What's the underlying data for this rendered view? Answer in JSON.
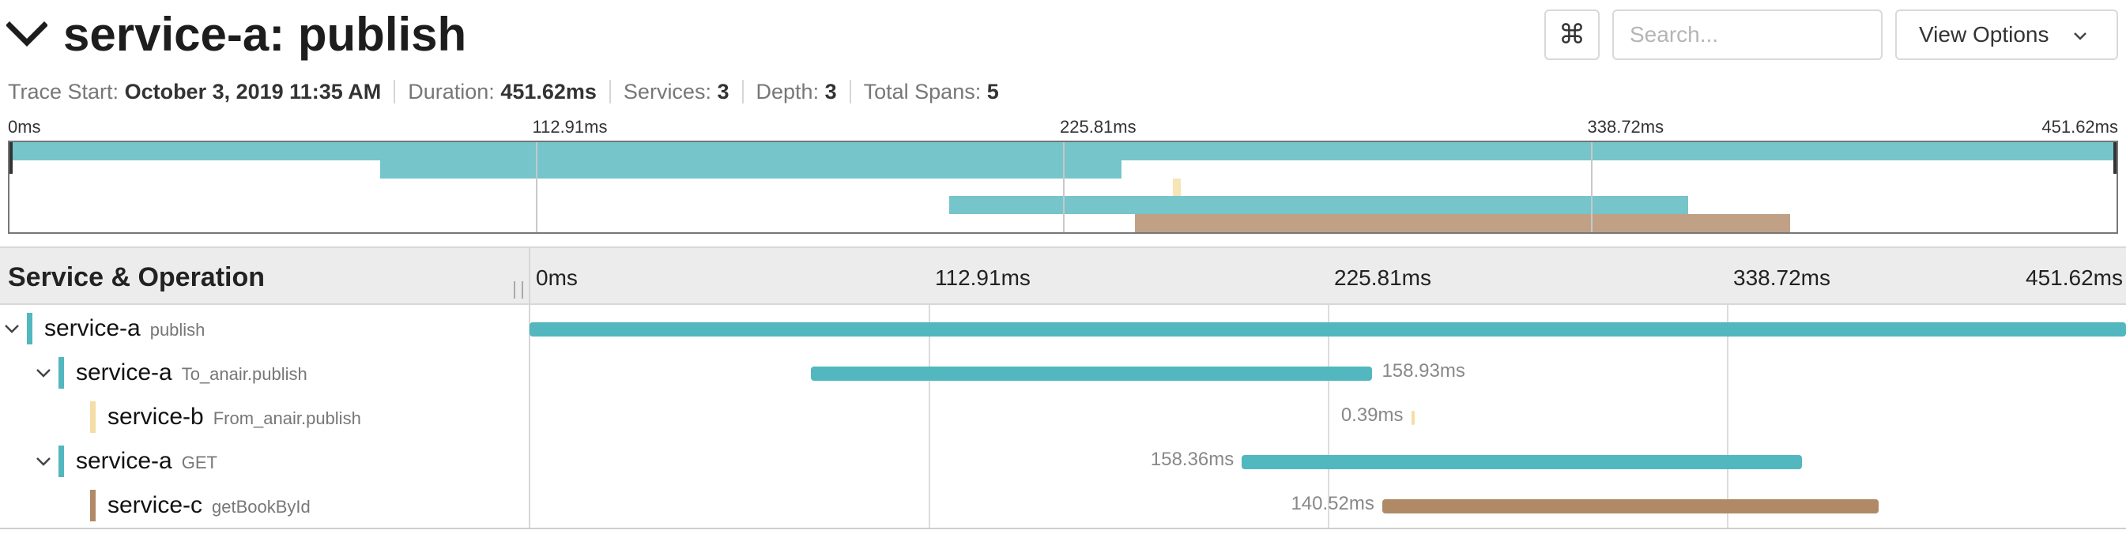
{
  "header": {
    "title": "service-a: publish",
    "search": {
      "placeholder": "Search...",
      "value": ""
    },
    "cmd_glyph": "⌘",
    "view_options_label": "View Options"
  },
  "meta": {
    "trace_start_label": "Trace Start:",
    "trace_start_value": "October 3, 2019 11:35 AM",
    "duration_label": "Duration:",
    "duration_value": "451.62ms",
    "services_label": "Services:",
    "services_value": "3",
    "depth_label": "Depth:",
    "depth_value": "3",
    "total_spans_label": "Total Spans:",
    "total_spans_value": "5"
  },
  "timeline": {
    "ticks": [
      "0ms",
      "112.91ms",
      "225.81ms",
      "338.72ms",
      "451.62ms"
    ],
    "total_ms": 451.62
  },
  "table": {
    "column_title": "Service & Operation"
  },
  "colors": {
    "service-a": "#52b7be",
    "service-b": "#f5dea5",
    "service-c": "#b08a66"
  },
  "spans": [
    {
      "service": "service-a",
      "operation": "publish",
      "depth": 0,
      "has_children": true,
      "start_ms": 0,
      "duration_ms": 451.62,
      "duration_label": ""
    },
    {
      "service": "service-a",
      "operation": "To_anair.publish",
      "depth": 1,
      "has_children": true,
      "start_ms": 79.5,
      "duration_ms": 158.93,
      "duration_label": "158.93ms"
    },
    {
      "service": "service-b",
      "operation": "From_anair.publish",
      "depth": 2,
      "has_children": false,
      "start_ms": 249.4,
      "duration_ms": 0.39,
      "duration_label": "0.39ms"
    },
    {
      "service": "service-a",
      "operation": "GET",
      "depth": 1,
      "has_children": true,
      "start_ms": 201.5,
      "duration_ms": 158.36,
      "duration_label": "158.36ms"
    },
    {
      "service": "service-c",
      "operation": "getBookById",
      "depth": 2,
      "has_children": false,
      "start_ms": 241.2,
      "duration_ms": 140.52,
      "duration_label": "140.52ms"
    }
  ]
}
